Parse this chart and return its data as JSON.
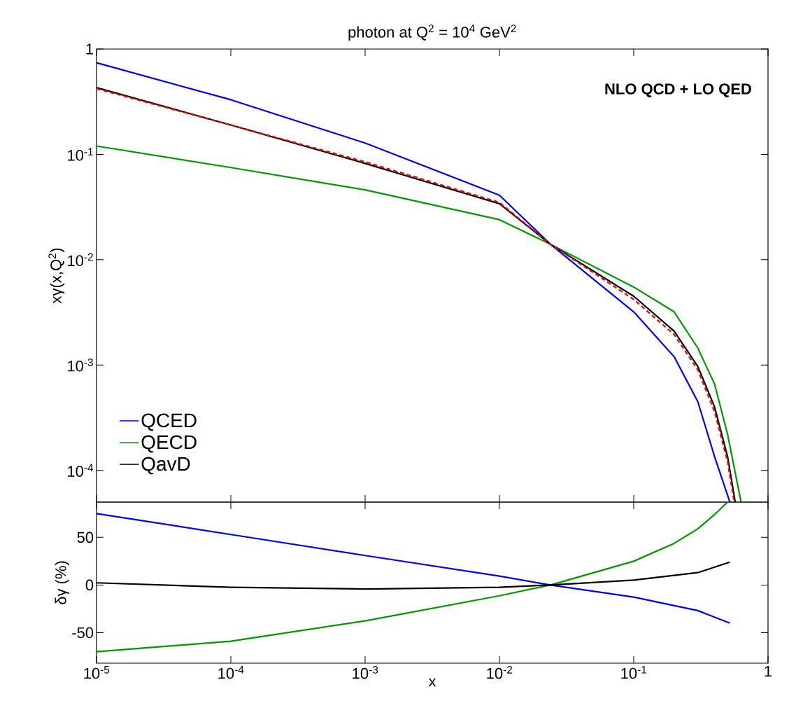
{
  "chart_data": [
    {
      "type": "line",
      "title": "photon at Q$^{2}$ = 10$^{4}$ GeV$^{2}$",
      "ylabel": "xγ(x,Q$^{2}$)",
      "annotations": [
        "NLO QCD + LO QED"
      ],
      "log": "xy",
      "legend": "bottom left",
      "tick_labels": "y",
      "xlim": [
        1e-05,
        1
      ],
      "ylim": [
        5e-05,
        1
      ],
      "xticks": [
        {
          "value": 1e-05,
          "label": null
        },
        {
          "value": 0.0001,
          "label": null
        },
        {
          "value": 0.001,
          "label": null
        },
        {
          "value": 0.01,
          "label": null
        },
        {
          "value": 0.1,
          "label": null
        },
        {
          "value": 1,
          "label": null
        }
      ],
      "yticks": [
        {
          "value": 0.0001,
          "label": "10$^{-4}$"
        },
        {
          "value": 0.001,
          "label": "10$^{-3}$"
        },
        {
          "value": 0.01,
          "label": "10$^{-2}$"
        },
        {
          "value": 0.1,
          "label": "10$^{-1}$"
        },
        1
      ],
      "series": [
        {
          "name": "QCED",
          "color": "#0000ff",
          "x": [
            1e-05,
            0.0001,
            0.001,
            0.01,
            0.024,
            0.1,
            0.2,
            0.3,
            0.4,
            0.52
          ],
          "values": [
            0.74,
            0.33,
            0.128,
            0.041,
            0.014,
            0.0032,
            0.0012,
            0.00045,
            0.000135,
            5e-05
          ]
        },
        {
          "name": "QECD",
          "color": "#009900",
          "x": [
            1e-05,
            0.0001,
            0.001,
            0.01,
            0.024,
            0.1,
            0.2,
            0.3,
            0.4,
            0.5,
            0.63
          ],
          "values": [
            0.12,
            0.075,
            0.046,
            0.024,
            0.014,
            0.0055,
            0.0032,
            0.00145,
            0.00066,
            0.00022,
            5e-05
          ]
        },
        {
          "name": "QavD",
          "color": "#000000",
          "x": [
            1e-05,
            0.0001,
            0.001,
            0.01,
            0.024,
            0.1,
            0.2,
            0.3,
            0.4,
            0.5,
            0.57
          ],
          "values": [
            0.43,
            0.19,
            0.082,
            0.034,
            0.014,
            0.0045,
            0.0021,
            0.00097,
            0.0004,
            0.000135,
            5e-05
          ]
        },
        {
          "color": "#ff0000",
          "line_style": "dashed",
          "x": [
            1e-05,
            0.0001,
            0.001,
            0.01,
            0.024,
            0.1,
            0.2,
            0.3,
            0.4,
            0.5,
            0.56
          ],
          "values": [
            0.42,
            0.19,
            0.085,
            0.035,
            0.014,
            0.0042,
            0.00195,
            0.0009,
            0.00036,
            0.00012,
            5e-05
          ]
        }
      ]
    },
    {
      "type": "line",
      "xlabel": "x",
      "ylabel": "δγ  (%)",
      "log": "x",
      "xlim": [
        1e-05,
        1
      ],
      "ylim": [
        -82,
        87
      ],
      "xticks": [
        {
          "value": 1e-05,
          "label": "10$^{-5}$"
        },
        {
          "value": 0.0001,
          "label": "10$^{-4}$"
        },
        {
          "value": 0.001,
          "label": "10$^{-3}$"
        },
        {
          "value": 0.01,
          "label": "10$^{-2}$"
        },
        {
          "value": 0.1,
          "label": "10$^{-1}$"
        },
        1
      ],
      "yticks": [
        -50,
        0,
        50
      ],
      "series": [
        {
          "color": "#0000ff",
          "x": [
            1e-05,
            0.0001,
            0.001,
            0.01,
            0.024,
            0.1,
            0.3,
            0.52
          ],
          "values": [
            75,
            53,
            31,
            9.4,
            0,
            -12.7,
            -26.8,
            -40
          ]
        },
        {
          "color": "#009900",
          "x": [
            1e-05,
            0.0001,
            0.001,
            0.01,
            0.024,
            0.1,
            0.2,
            0.3,
            0.4,
            0.5
          ],
          "values": [
            -70,
            -59,
            -37.6,
            -11.3,
            0,
            25,
            43.7,
            59,
            74,
            87
          ]
        },
        {
          "color": "#000000",
          "x": [
            1e-05,
            0.0001,
            0.001,
            0.01,
            0.024,
            0.1,
            0.3,
            0.52
          ],
          "values": [
            2.3,
            -2.3,
            -4.2,
            -2.3,
            0,
            5.2,
            13,
            24
          ]
        }
      ]
    }
  ]
}
